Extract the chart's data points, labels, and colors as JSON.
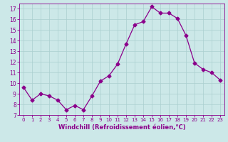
{
  "x": [
    0,
    1,
    2,
    3,
    4,
    5,
    6,
    7,
    8,
    9,
    10,
    11,
    12,
    13,
    14,
    15,
    16,
    17,
    18,
    19,
    20,
    21,
    22,
    23
  ],
  "y": [
    9.6,
    8.4,
    9.0,
    8.8,
    8.4,
    7.5,
    7.9,
    7.5,
    8.8,
    10.2,
    10.7,
    11.8,
    13.7,
    15.5,
    15.8,
    17.2,
    16.6,
    16.6,
    16.1,
    14.5,
    11.9,
    11.3,
    11.0,
    10.3
  ],
  "line_color": "#8B008B",
  "marker": "D",
  "marker_size": 2.5,
  "bg_color": "#cce8e8",
  "grid_color": "#aacfcf",
  "xlabel": "Windchill (Refroidissement éolien,°C)",
  "xlabel_color": "#8B008B",
  "tick_color": "#8B008B",
  "ylim": [
    7,
    17.5
  ],
  "xlim": [
    -0.5,
    23.5
  ],
  "yticks": [
    7,
    8,
    9,
    10,
    11,
    12,
    13,
    14,
    15,
    16,
    17
  ],
  "xticks": [
    0,
    1,
    2,
    3,
    4,
    5,
    6,
    7,
    8,
    9,
    10,
    11,
    12,
    13,
    14,
    15,
    16,
    17,
    18,
    19,
    20,
    21,
    22,
    23
  ]
}
